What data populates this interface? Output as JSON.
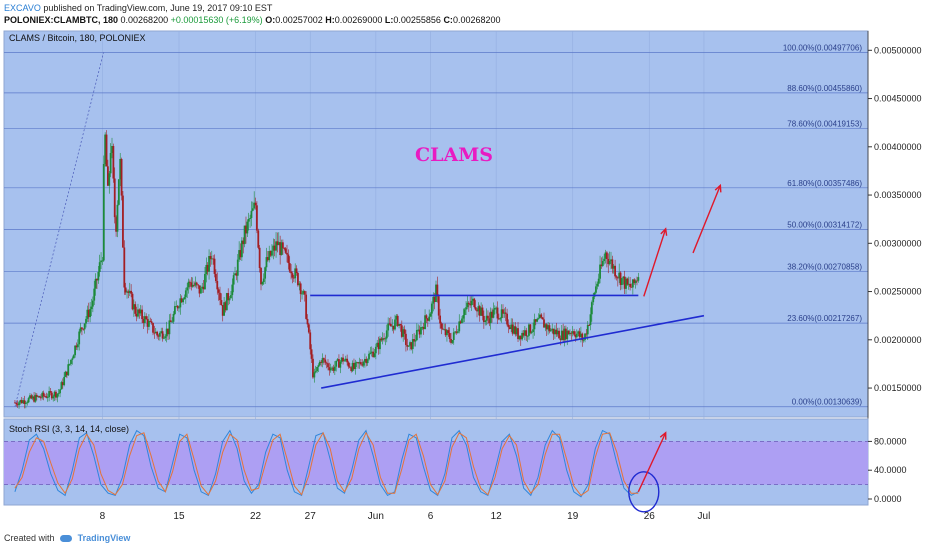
{
  "header": {
    "author": "EXCAVO",
    "published": "published on TradingView.com, June 19, 2017 09:10 EST",
    "symbol": "POLONIEX:CLAMBTC, 180",
    "last": "0.00268200",
    "change": "+0.00015630 (+6.19%)",
    "ohlc": {
      "o_label": "O:",
      "o": "0.00257002",
      "h_label": "H:",
      "h": "0.00269000",
      "l_label": "L:",
      "l": "0.00255856",
      "c_label": "C:",
      "c": "0.00268200"
    }
  },
  "chart_data": [
    {
      "type": "candlestick",
      "title": "CLAMS / Bitcoin, 180, POLONIEX",
      "annotation": "CLAMS",
      "ylim": [
        0.0012,
        0.0052
      ],
      "y_ticks": [
        "0.00500000",
        "0.00450000",
        "0.00400000",
        "0.00350000",
        "0.00300000",
        "0.00250000",
        "0.00200000",
        "0.00150000"
      ],
      "y_tick_values": [
        0.005,
        0.0045,
        0.004,
        0.0035,
        0.003,
        0.0025,
        0.002,
        0.0015
      ],
      "x_ticks": [
        "8",
        "15",
        "22",
        "27",
        "Jun",
        "6",
        "12",
        "19",
        "26",
        "Jul"
      ],
      "fib_levels": [
        {
          "label": "100.00%(0.00497706)",
          "value": 0.00497706
        },
        {
          "label": "88.60%(0.00455860)",
          "value": 0.0045586
        },
        {
          "label": "78.60%(0.00419153)",
          "value": 0.00419153
        },
        {
          "label": "61.80%(0.00357486)",
          "value": 0.00357486
        },
        {
          "label": "50.00%(0.00314172)",
          "value": 0.00314172
        },
        {
          "label": "38.20%(0.00270858)",
          "value": 0.00270858
        },
        {
          "label": "23.60%(0.00217267)",
          "value": 0.00217267
        },
        {
          "label": "0.00%(0.00130639)",
          "value": 0.00130639
        }
      ],
      "price_path": [
        [
          0,
          0.00135
        ],
        [
          2,
          0.0014
        ],
        [
          4,
          0.00145
        ],
        [
          5,
          0.00175
        ],
        [
          6,
          0.0021
        ],
        [
          7,
          0.00235
        ],
        [
          8,
          0.0029
        ],
        [
          8.2,
          0.0042
        ],
        [
          8.5,
          0.0035
        ],
        [
          8.8,
          0.0041
        ],
        [
          9.2,
          0.0031
        ],
        [
          9.6,
          0.0039
        ],
        [
          10,
          0.0026
        ],
        [
          11,
          0.0023
        ],
        [
          12,
          0.0022
        ],
        [
          13,
          0.00205
        ],
        [
          14,
          0.0021
        ],
        [
          15,
          0.0024
        ],
        [
          16,
          0.0026
        ],
        [
          17,
          0.0025
        ],
        [
          18,
          0.0029
        ],
        [
          19,
          0.0023
        ],
        [
          20,
          0.0026
        ],
        [
          21,
          0.0031
        ],
        [
          22,
          0.0034
        ],
        [
          22.5,
          0.0026
        ],
        [
          23,
          0.0028
        ],
        [
          24,
          0.003
        ],
        [
          25,
          0.0028
        ],
        [
          26,
          0.0026
        ],
        [
          26.5,
          0.0024
        ],
        [
          27,
          0.0019
        ],
        [
          27.3,
          0.0016
        ],
        [
          28,
          0.0018
        ],
        [
          29,
          0.0017
        ],
        [
          30,
          0.0018
        ],
        [
          31,
          0.0017
        ],
        [
          32,
          0.0018
        ],
        [
          33,
          0.0019
        ],
        [
          34,
          0.0021
        ],
        [
          35,
          0.0022
        ],
        [
          36,
          0.0019
        ],
        [
          37,
          0.0021
        ],
        [
          38,
          0.0023
        ],
        [
          38.5,
          0.0025
        ],
        [
          39,
          0.0021
        ],
        [
          40,
          0.002
        ],
        [
          41,
          0.0023
        ],
        [
          42,
          0.0024
        ],
        [
          43,
          0.0022
        ],
        [
          44,
          0.0023
        ],
        [
          45,
          0.0022
        ],
        [
          46,
          0.00205
        ],
        [
          47,
          0.0021
        ],
        [
          48,
          0.0022
        ],
        [
          49,
          0.0021
        ],
        [
          50,
          0.00205
        ],
        [
          51,
          0.0021
        ],
        [
          52,
          0.002
        ],
        [
          52.5,
          0.0022
        ],
        [
          53,
          0.0025
        ],
        [
          53.5,
          0.0027
        ],
        [
          54,
          0.0029
        ],
        [
          55,
          0.0027
        ],
        [
          56,
          0.00255
        ],
        [
          56.5,
          0.00255
        ],
        [
          57,
          0.00268
        ]
      ],
      "triangle_resistance": [
        [
          27,
          0.00246
        ],
        [
          57,
          0.00246
        ]
      ],
      "triangle_support": [
        [
          28,
          0.0015
        ],
        [
          63,
          0.00225
        ]
      ],
      "forecast_arrows": [
        [
          [
            57.5,
            0.00245
          ],
          [
            59.5,
            0.00315
          ]
        ],
        [
          [
            62,
            0.0029
          ],
          [
            64.5,
            0.0036
          ]
        ]
      ]
    },
    {
      "type": "line",
      "title": "Stoch RSI (3, 3, 14, 14, close)",
      "ylim": [
        0,
        100
      ],
      "y_ticks": [
        "80.0000",
        "40.0000",
        "0.0000"
      ],
      "y_tick_values": [
        80,
        40,
        0
      ],
      "band": [
        20,
        80
      ],
      "series": [
        {
          "color": "#2f86dc",
          "values": [
            10,
            40,
            82,
            90,
            70,
            35,
            12,
            5,
            40,
            85,
            92,
            60,
            20,
            8,
            5,
            30,
            75,
            95,
            88,
            45,
            15,
            10,
            50,
            90,
            85,
            40,
            10,
            5,
            35,
            80,
            95,
            70,
            25,
            8,
            20,
            65,
            90,
            85,
            40,
            10,
            5,
            45,
            88,
            92,
            55,
            15,
            8,
            40,
            82,
            95,
            60,
            20,
            5,
            10,
            55,
            90,
            85,
            45,
            12,
            5,
            35,
            85,
            95,
            75,
            30,
            10,
            5,
            40,
            80,
            90,
            60,
            15,
            5,
            30,
            75,
            95,
            85,
            40,
            10,
            3,
            20,
            70,
            95,
            90,
            50,
            15,
            5,
            10
          ]
        },
        {
          "color": "#e4743a",
          "values": [
            15,
            30,
            65,
            85,
            80,
            50,
            22,
            8,
            28,
            70,
            90,
            75,
            35,
            12,
            6,
            20,
            60,
            88,
            92,
            60,
            25,
            10,
            38,
            80,
            90,
            55,
            18,
            6,
            25,
            65,
            90,
            82,
            40,
            12,
            15,
            50,
            82,
            90,
            55,
            18,
            6,
            32,
            75,
            92,
            70,
            25,
            10,
            28,
            70,
            92,
            75,
            30,
            8,
            8,
            42,
            82,
            90,
            60,
            20,
            6,
            25,
            72,
            92,
            85,
            45,
            15,
            6,
            30,
            70,
            88,
            75,
            25,
            8,
            20,
            62,
            90,
            90,
            55,
            18,
            5,
            12,
            58,
            90,
            92,
            65,
            25,
            8,
            8
          ]
        }
      ],
      "forecast_arrow": [
        [
          88,
          10
        ],
        [
          95,
          92
        ]
      ]
    }
  ],
  "footer": {
    "created": "Created with",
    "brand": "TradingView"
  },
  "colors": {
    "main_bg": "#a7c1ee",
    "rsi_band": "#ad9ff3",
    "fib_line": "#5b79c9",
    "trendline": "#1f2bd1",
    "arrow": "#e0182a",
    "annotation": "#e81bc2",
    "up_candle": "#1c8a3a",
    "down_candle": "#a31e23"
  }
}
